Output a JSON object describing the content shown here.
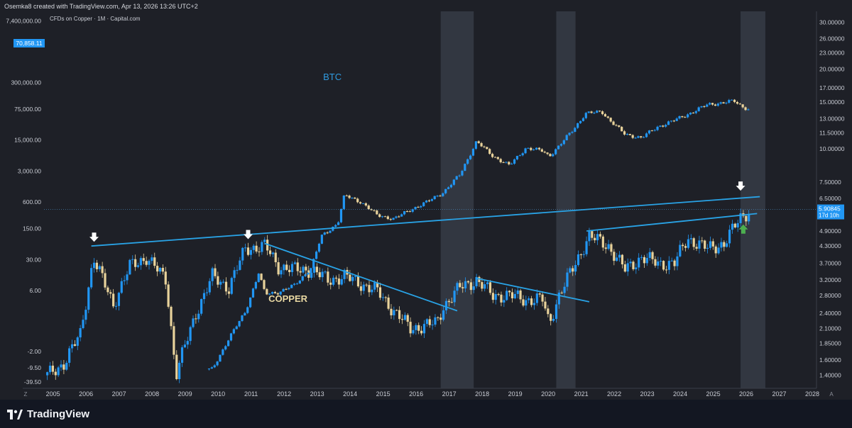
{
  "header": {
    "text": "Osemka8 created with TradingView.com, Apr 13, 2026 13:26 UTC+2"
  },
  "chart_sub": "CFDs on Copper · 1M · Capital.com",
  "footer": {
    "brand": "TradingView"
  },
  "colors": {
    "background": "#1e2027",
    "up": "#2196f3",
    "down": "#e8d29b",
    "trendline": "#29a3e6",
    "highlight": "#3a3f4b",
    "arrow": "#ffffff",
    "green_arrow": "#4caf50"
  },
  "chart_data": {
    "type": "candlestick",
    "annotations": {
      "btc": "BTC",
      "copper": "COPPER"
    },
    "x_axis": {
      "ticks": [
        "2005",
        "2006",
        "2007",
        "2008",
        "2009",
        "2010",
        "2011",
        "2012",
        "2013",
        "2014",
        "2015",
        "2016",
        "2017",
        "2018",
        "2019",
        "2020",
        "2021",
        "2022",
        "2023",
        "2024",
        "2025",
        "2026",
        "2027",
        "2028"
      ],
      "corner_left": "Z",
      "corner_right": "A"
    },
    "left_axis": {
      "scale": "log",
      "ticks": [
        "7,400,000.00",
        "300,000.00",
        "75,000.00",
        "15,000.00",
        "3,000.00",
        "600.00",
        "150.00",
        "30.00",
        "6.00",
        "-2.00",
        "-9.50",
        "-39.50"
      ]
    },
    "right_axis": {
      "scale": "log",
      "ticks": [
        "30.00000",
        "26.00000",
        "23.00000",
        "20.00000",
        "17.00000",
        "15.00000",
        "13.00000",
        "11.50000",
        "10.00000",
        "7.50000",
        "6.50000",
        "4.90000",
        "4.30000",
        "3.70000",
        "3.20000",
        "2.80000",
        "2.40000",
        "2.10000",
        "1.85000",
        "1.60000",
        "1.40000"
      ]
    },
    "price_labels": {
      "btc_last": "70,858.11",
      "copper_last": "5.90845",
      "countdown": "17d 10h"
    },
    "highlighted_periods": [
      [
        "2016-12",
        "2017-12"
      ],
      [
        "2020-06",
        "2021-01"
      ],
      [
        "2026-01",
        "2026-10"
      ]
    ],
    "copper_series": {
      "years": [
        2005.0,
        2005.5,
        2006.0,
        2006.4,
        2006.5,
        2007.0,
        2007.5,
        2008.0,
        2008.6,
        2008.9,
        2009.0,
        2009.5,
        2010.0,
        2010.5,
        2011.0,
        2011.6,
        2012.0,
        2012.5,
        2013.0,
        2013.5,
        2014.0,
        2014.5,
        2015.0,
        2015.5,
        2016.0,
        2016.8,
        2017.0,
        2017.5,
        2018.0,
        2018.5,
        2019.0,
        2019.5,
        2020.0,
        2020.2,
        2020.5,
        2021.0,
        2021.4,
        2022.0,
        2022.5,
        2023.0,
        2023.5,
        2024.0,
        2024.4,
        2025.0,
        2025.5,
        2026.0,
        2026.3
      ],
      "values": [
        1.4,
        1.55,
        2.0,
        3.9,
        3.6,
        2.6,
        3.6,
        3.9,
        3.2,
        1.4,
        1.55,
        2.4,
        3.3,
        3.0,
        4.2,
        4.3,
        3.6,
        3.5,
        3.5,
        3.2,
        3.3,
        3.1,
        2.9,
        2.45,
        2.1,
        2.2,
        2.55,
        3.0,
        3.2,
        2.8,
        2.8,
        2.7,
        2.7,
        2.2,
        2.8,
        3.7,
        4.7,
        4.3,
        3.5,
        3.9,
        3.7,
        3.7,
        4.6,
        4.2,
        4.4,
        5.5,
        5.9
      ]
    },
    "btc_series": {
      "years": [
        2010.0,
        2010.5,
        2011.0,
        2011.4,
        2011.6,
        2012.0,
        2012.5,
        2013.0,
        2013.3,
        2013.8,
        2014.0,
        2014.5,
        2015.0,
        2015.5,
        2016.0,
        2016.5,
        2017.0,
        2017.5,
        2018.0,
        2018.5,
        2019.0,
        2019.5,
        2020.0,
        2020.2,
        2020.5,
        2021.0,
        2021.3,
        2021.8,
        2022.0,
        2022.5,
        2023.0,
        2023.5,
        2024.0,
        2024.5,
        2025.0,
        2025.5,
        2025.8,
        2026.0,
        2026.3
      ],
      "values": [
        0.1,
        0.5,
        2.0,
        15.0,
        5.0,
        5.5,
        8.0,
        20.0,
        100.0,
        200.0,
        850.0,
        600.0,
        300.0,
        250.0,
        400.0,
        600.0,
        1000.0,
        2500.0,
        14000.0,
        6500.0,
        4000.0,
        10000.0,
        8500.0,
        6500.0,
        11000.0,
        30000.0,
        60000.0,
        65000.0,
        45000.0,
        20000.0,
        17000.0,
        30000.0,
        42000.0,
        62000.0,
        95000.0,
        105000.0,
        115000.0,
        90000.0,
        70858.11
      ]
    },
    "trendlines": [
      {
        "from": [
          "2006-05",
          4.3
        ],
        "to": [
          "2026-08",
          6.6
        ]
      },
      {
        "from": [
          "2011-08",
          4.4
        ],
        "to": [
          "2017-06",
          2.45
        ]
      },
      {
        "from": [
          "2018-01",
          3.25
        ],
        "to": [
          "2021-06",
          2.65
        ]
      },
      {
        "from": [
          "2021-05",
          4.9
        ],
        "to": [
          "2026-07",
          5.7
        ]
      }
    ],
    "markers": [
      {
        "type": "down-arrow",
        "x": "2006-06",
        "near": 4.3
      },
      {
        "type": "down-arrow",
        "x": "2011-02",
        "near": 4.4
      },
      {
        "type": "down-arrow",
        "x": "2026-01",
        "near": 6.7
      },
      {
        "type": "up-arrow",
        "x": "2026-02",
        "near": 5.0
      }
    ]
  }
}
